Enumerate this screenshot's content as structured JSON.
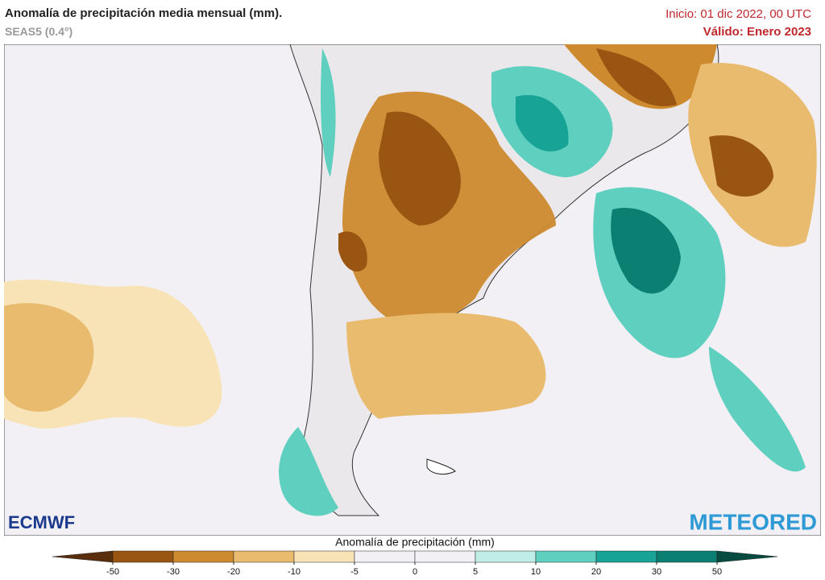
{
  "header": {
    "title": "Anomalía de precipitación media mensual (mm).",
    "subtitle": "SEAS5 (0.4°)",
    "init": "Inicio: 01 dic 2022, 00 UTC",
    "valid": "Válido: Enero 2023"
  },
  "logos": {
    "left": "ECMWF",
    "right": "METEORED"
  },
  "colorbar": {
    "title": "Anomalía de precipitación (mm)",
    "ticks": [
      -50,
      -30,
      -20,
      -10,
      -5,
      0,
      5,
      10,
      20,
      30,
      50
    ],
    "colors": [
      "#5a2d0c",
      "#9a5512",
      "#cd8a2e",
      "#e8bb6e",
      "#f7e3b6",
      "#f2f0f4",
      "#f2f0f4",
      "#bfeee6",
      "#5fcfc0",
      "#17a395",
      "#0b7f72",
      "#064a40"
    ]
  }
}
